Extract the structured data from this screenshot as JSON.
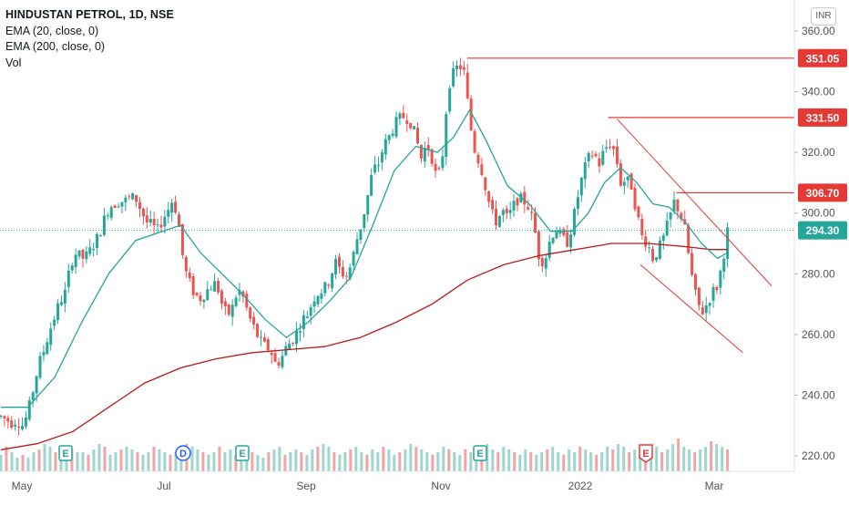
{
  "legend": {
    "title": "HINDUSTAN PETROL, 1D, NSE",
    "ema20": "EMA (20, close, 0)",
    "ema200": "EMA (200, close, 0)",
    "vol": "Vol"
  },
  "currency": "INR",
  "colors": {
    "up": "#26a69a",
    "down": "#ef5350",
    "ema20": "#26a69a",
    "ema200": "#b71c1c",
    "levels": "#e53935",
    "price_line": "#26a69a",
    "axis_text": "#50535e",
    "vol_up": "#9ed5cf",
    "vol_down": "#f5a3a1"
  },
  "chart_data": {
    "type": "candlestick",
    "ylim": [
      215,
      365
    ],
    "yticks": [
      "360.00",
      "340.00",
      "320.00",
      "300.00",
      "280.00",
      "260.00",
      "240.00",
      "220.00"
    ],
    "ytick_values": [
      360,
      340,
      320,
      300,
      280,
      260,
      240,
      220
    ],
    "xticks": [
      "May",
      "Jul",
      "Sep",
      "Nov",
      "2022",
      "Mar"
    ],
    "current_price": "294.30",
    "levels": [
      "351.05",
      "331.50",
      "306.70"
    ],
    "events": [
      "E",
      "D",
      "E",
      "E",
      "E"
    ],
    "grid": false,
    "ohlc_path": [
      [
        0,
        233
      ],
      [
        6,
        232
      ],
      [
        12,
        231
      ],
      [
        18,
        232
      ],
      [
        24,
        230
      ],
      [
        30,
        234
      ],
      [
        36,
        242
      ],
      [
        42,
        250
      ],
      [
        48,
        255
      ],
      [
        54,
        261
      ],
      [
        60,
        266
      ],
      [
        66,
        271
      ],
      [
        72,
        274
      ],
      [
        78,
        284
      ],
      [
        84,
        287
      ],
      [
        90,
        285
      ],
      [
        96,
        286
      ],
      [
        102,
        289
      ],
      [
        108,
        292
      ],
      [
        114,
        297
      ],
      [
        120,
        302
      ],
      [
        126,
        303
      ],
      [
        132,
        304
      ],
      [
        138,
        304
      ],
      [
        144,
        305
      ],
      [
        150,
        305
      ],
      [
        156,
        301
      ],
      [
        162,
        297
      ],
      [
        168,
        296
      ],
      [
        174,
        294
      ],
      [
        180,
        298
      ],
      [
        186,
        301
      ],
      [
        192,
        305
      ],
      [
        198,
        296
      ],
      [
        204,
        282
      ],
      [
        210,
        277
      ],
      [
        216,
        273
      ],
      [
        222,
        272
      ],
      [
        228,
        274
      ],
      [
        234,
        276
      ],
      [
        240,
        277
      ],
      [
        246,
        270
      ],
      [
        252,
        266
      ],
      [
        258,
        269
      ],
      [
        264,
        275
      ],
      [
        270,
        272
      ],
      [
        276,
        266
      ],
      [
        282,
        262
      ],
      [
        288,
        258
      ],
      [
        294,
        256
      ],
      [
        300,
        255
      ],
      [
        306,
        250
      ],
      [
        312,
        252
      ],
      [
        318,
        256
      ],
      [
        324,
        258
      ],
      [
        330,
        261
      ],
      [
        336,
        265
      ],
      [
        342,
        267
      ],
      [
        348,
        272
      ],
      [
        354,
        274
      ],
      [
        360,
        275
      ],
      [
        366,
        278
      ],
      [
        372,
        284
      ],
      [
        378,
        281
      ],
      [
        384,
        279
      ],
      [
        390,
        283
      ],
      [
        396,
        291
      ],
      [
        402,
        297
      ],
      [
        408,
        305
      ],
      [
        414,
        314
      ],
      [
        420,
        316
      ],
      [
        426,
        322
      ],
      [
        432,
        325
      ],
      [
        438,
        329
      ],
      [
        444,
        331
      ],
      [
        450,
        332
      ],
      [
        456,
        330
      ],
      [
        462,
        325
      ],
      [
        468,
        318
      ],
      [
        474,
        323
      ],
      [
        480,
        318
      ],
      [
        486,
        310
      ],
      [
        492,
        320
      ],
      [
        498,
        342
      ],
      [
        504,
        346
      ],
      [
        510,
        349
      ],
      [
        516,
        346
      ],
      [
        522,
        330
      ],
      [
        528,
        320
      ],
      [
        534,
        316
      ],
      [
        540,
        308
      ],
      [
        546,
        300
      ],
      [
        552,
        297
      ],
      [
        558,
        301
      ],
      [
        564,
        298
      ],
      [
        570,
        302
      ],
      [
        576,
        305
      ],
      [
        582,
        304
      ],
      [
        588,
        302
      ],
      [
        594,
        295
      ],
      [
        600,
        284
      ],
      [
        606,
        285
      ],
      [
        612,
        292
      ],
      [
        618,
        295
      ],
      [
        624,
        292
      ],
      [
        630,
        290
      ],
      [
        636,
        296
      ],
      [
        642,
        305
      ],
      [
        648,
        313
      ],
      [
        654,
        318
      ],
      [
        660,
        320
      ],
      [
        666,
        316
      ],
      [
        672,
        321
      ],
      [
        678,
        323
      ],
      [
        684,
        320
      ],
      [
        690,
        310
      ],
      [
        696,
        311
      ],
      [
        702,
        309
      ],
      [
        708,
        300
      ],
      [
        714,
        292
      ],
      [
        720,
        290
      ],
      [
        726,
        285
      ],
      [
        732,
        288
      ],
      [
        738,
        292
      ],
      [
        744,
        298
      ],
      [
        750,
        304
      ],
      [
        756,
        300
      ],
      [
        762,
        294
      ],
      [
        768,
        281
      ],
      [
        774,
        272
      ],
      [
        780,
        267
      ],
      [
        786,
        270
      ],
      [
        792,
        274
      ],
      [
        798,
        276
      ],
      [
        804,
        285
      ],
      [
        809,
        294
      ]
    ],
    "ema20_path": [
      [
        0,
        236
      ],
      [
        30,
        236
      ],
      [
        60,
        246
      ],
      [
        90,
        264
      ],
      [
        120,
        280
      ],
      [
        150,
        291
      ],
      [
        180,
        294
      ],
      [
        200,
        296
      ],
      [
        222,
        287
      ],
      [
        246,
        280
      ],
      [
        270,
        273
      ],
      [
        294,
        265
      ],
      [
        318,
        259
      ],
      [
        342,
        264
      ],
      [
        366,
        271
      ],
      [
        390,
        279
      ],
      [
        414,
        296
      ],
      [
        438,
        314
      ],
      [
        462,
        322
      ],
      [
        486,
        320
      ],
      [
        504,
        325
      ],
      [
        522,
        334
      ],
      [
        540,
        324
      ],
      [
        564,
        309
      ],
      [
        588,
        303
      ],
      [
        612,
        294
      ],
      [
        636,
        294
      ],
      [
        654,
        300
      ],
      [
        672,
        310
      ],
      [
        690,
        315
      ],
      [
        708,
        310
      ],
      [
        726,
        303
      ],
      [
        744,
        302
      ],
      [
        762,
        297
      ],
      [
        780,
        290
      ],
      [
        798,
        285
      ],
      [
        809,
        287
      ]
    ],
    "ema200_path": [
      [
        0,
        222
      ],
      [
        40,
        224
      ],
      [
        80,
        228
      ],
      [
        120,
        236
      ],
      [
        160,
        244
      ],
      [
        200,
        249
      ],
      [
        240,
        252
      ],
      [
        280,
        254
      ],
      [
        320,
        255
      ],
      [
        360,
        256
      ],
      [
        400,
        259
      ],
      [
        440,
        264
      ],
      [
        480,
        270
      ],
      [
        520,
        278
      ],
      [
        560,
        283
      ],
      [
        600,
        286
      ],
      [
        640,
        288
      ],
      [
        680,
        290
      ],
      [
        720,
        290
      ],
      [
        760,
        289
      ],
      [
        790,
        288
      ],
      [
        809,
        288
      ]
    ],
    "volumes": [
      6,
      9,
      7,
      5,
      6,
      5,
      7,
      8,
      10,
      9,
      7,
      6,
      9,
      8,
      7,
      7,
      6,
      8,
      10,
      9,
      6,
      7,
      8,
      9,
      8,
      7,
      6,
      7,
      9,
      8,
      7,
      6,
      7,
      8,
      10,
      9,
      8,
      7,
      6,
      7,
      9,
      7,
      8,
      6,
      8,
      9,
      7,
      6,
      5,
      7,
      8,
      9,
      6,
      7,
      8,
      7,
      6,
      8,
      9,
      10,
      9,
      7,
      6,
      7,
      8,
      9,
      7,
      6,
      8,
      7,
      9,
      8,
      6,
      7,
      8,
      10,
      9,
      8,
      7,
      6,
      7,
      9,
      8,
      7,
      6,
      8,
      7,
      6,
      9,
      10,
      8,
      7,
      9,
      8,
      7,
      6,
      8,
      7,
      6,
      7,
      8,
      9,
      7,
      6,
      8,
      7,
      9,
      8,
      7,
      6,
      7,
      9,
      8,
      10,
      9,
      7,
      8,
      6,
      7,
      8,
      9,
      7,
      8,
      10,
      12,
      9,
      8,
      7,
      8,
      9,
      11,
      10,
      9,
      8
    ]
  }
}
